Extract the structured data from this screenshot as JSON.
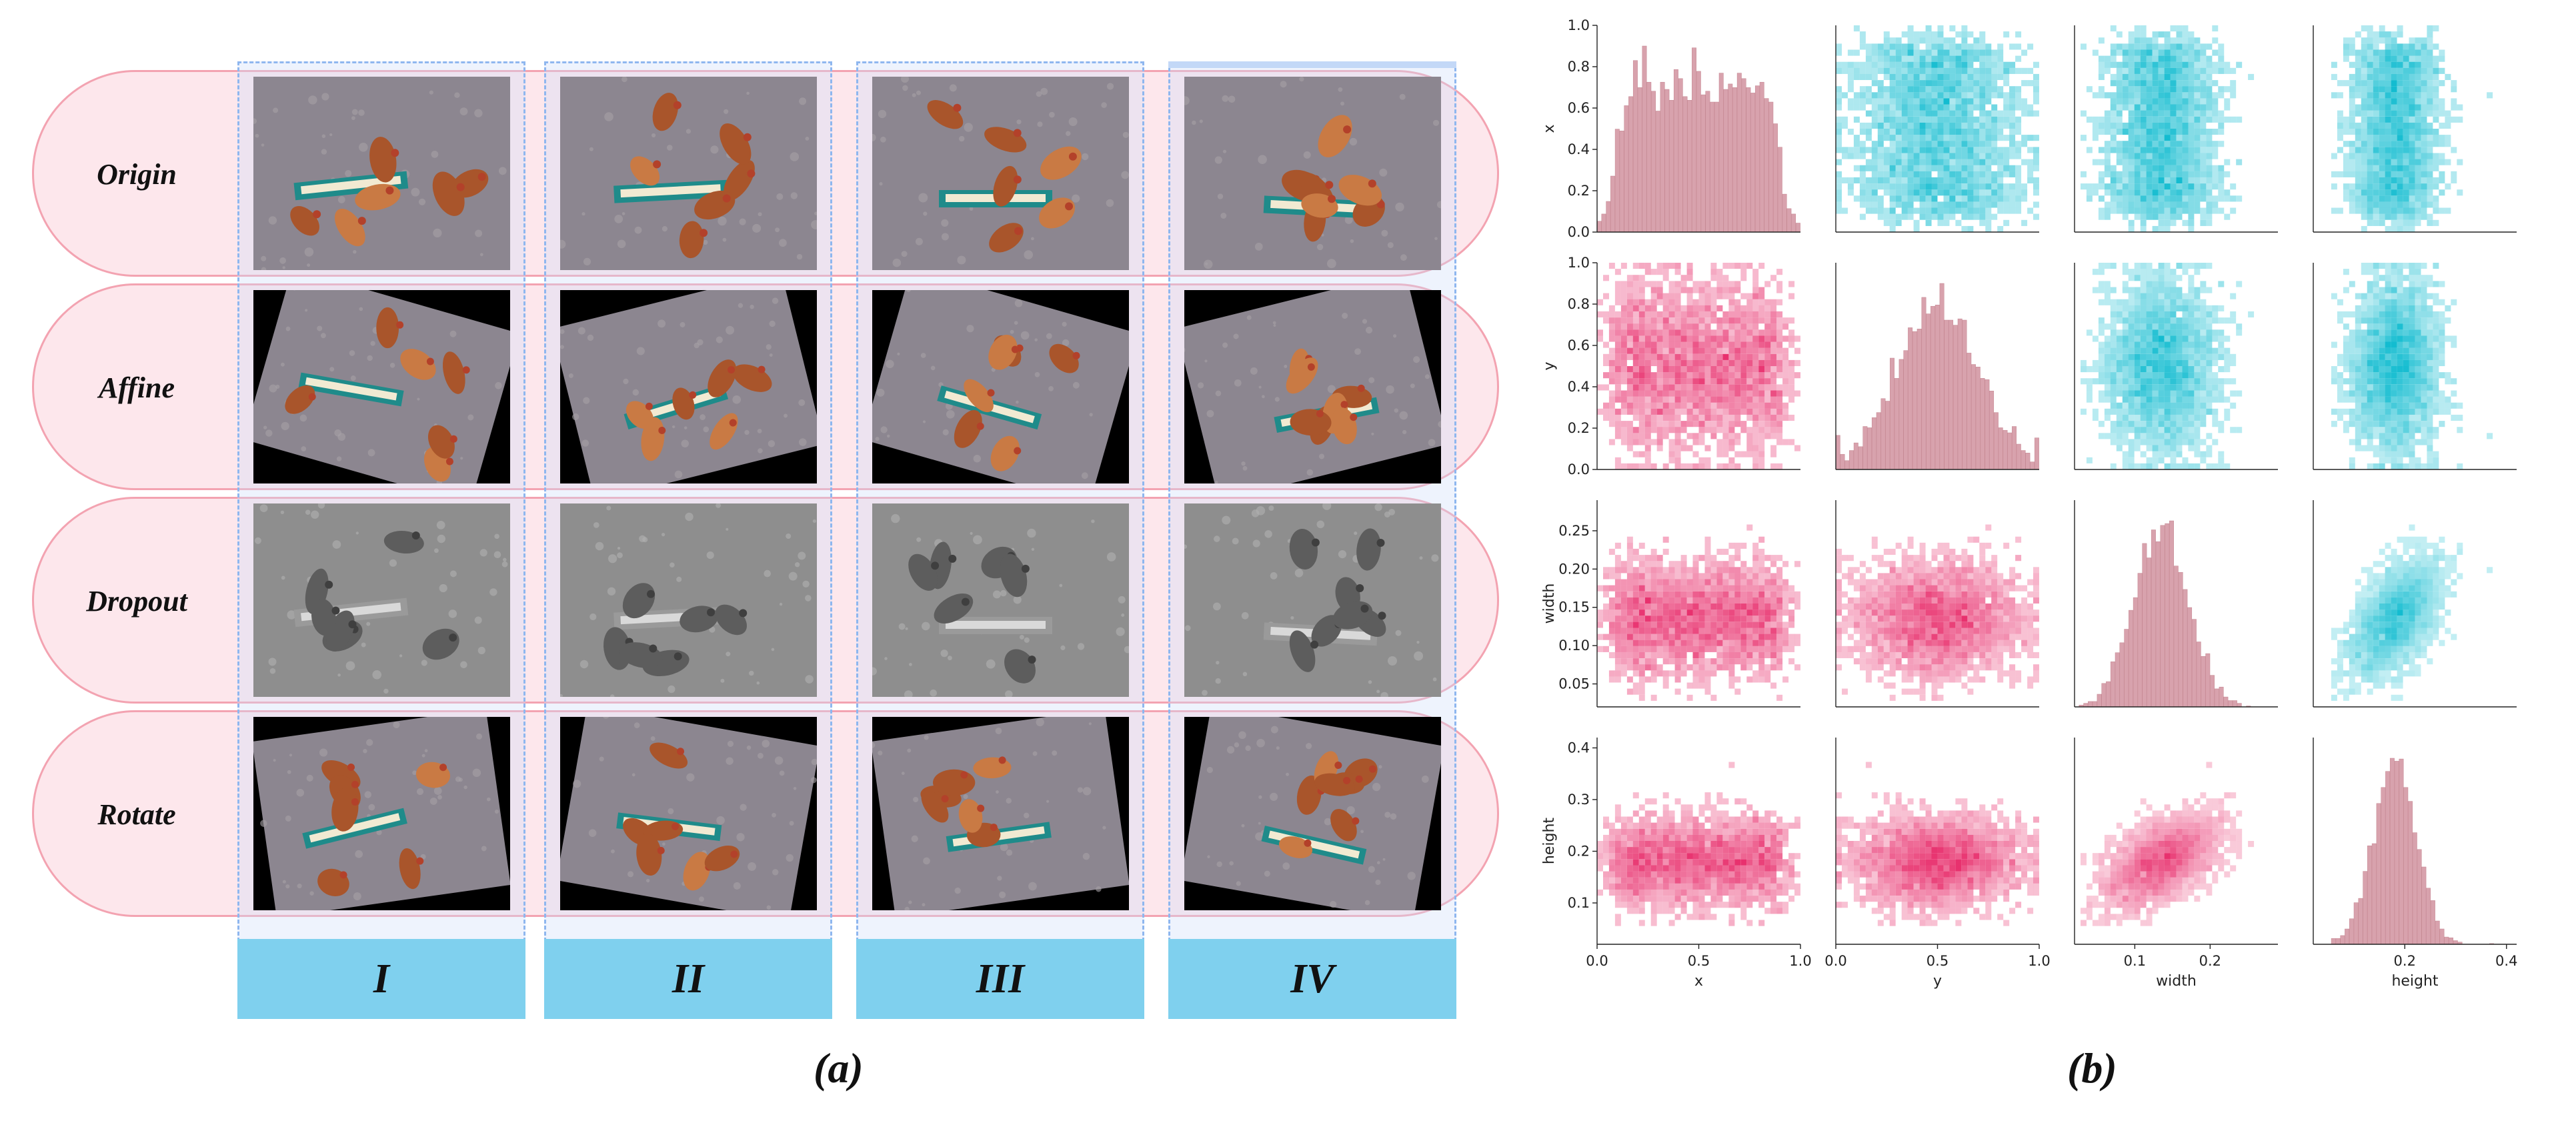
{
  "panel_a": {
    "caption": "(a)",
    "rows": [
      "Origin",
      "Affine",
      "Dropout",
      "Rotate"
    ],
    "columns": [
      "I",
      "II",
      "III",
      "IV"
    ]
  },
  "panel_b": {
    "caption": "(b)",
    "chart_data": {
      "type": "pairplot",
      "variables": [
        "x",
        "y",
        "width",
        "height"
      ],
      "diagonal": "histogram",
      "upper": "2d-histogram (cyan)",
      "lower": "2d-histogram (pink)",
      "ranges": {
        "x": [
          0.0,
          1.0
        ],
        "y": [
          0.0,
          1.0
        ],
        "width": [
          0.02,
          0.29
        ],
        "height": [
          0.02,
          0.42
        ]
      },
      "x_ticks": {
        "x": [
          "0.0",
          "0.5",
          "1.0"
        ],
        "y": [
          "0.0",
          "0.5",
          "1.0"
        ],
        "width": [
          "0.1",
          "0.2"
        ],
        "height": [
          "0.2",
          "0.4"
        ]
      },
      "y_ticks": {
        "x": [
          "0.0",
          "0.2",
          "0.4",
          "0.6",
          "0.8",
          "1.0"
        ],
        "y": [
          "0.0",
          "0.2",
          "0.4",
          "0.6",
          "0.8",
          "1.0"
        ],
        "width": [
          "0.05",
          "0.10",
          "0.15",
          "0.20",
          "0.25"
        ],
        "height": [
          "0.1",
          "0.2",
          "0.3",
          "0.4"
        ]
      },
      "axis_labels": [
        "x",
        "y",
        "width",
        "height"
      ],
      "colors": {
        "upper": "#13bcd0",
        "lower": "#e8316e",
        "diag": "#d8a2ad"
      }
    }
  }
}
